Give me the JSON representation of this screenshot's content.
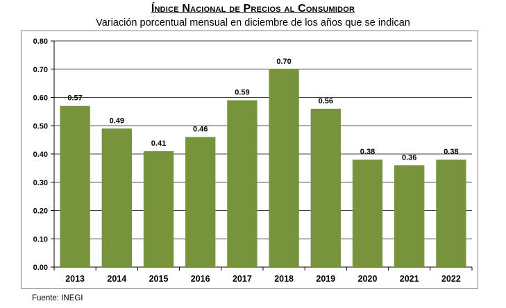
{
  "header": {
    "title": "Índice Nacional de Precios al Consumidor",
    "subtitle": "Variación porcentual mensual en diciembre de los años que se indican"
  },
  "footer": {
    "source": "Fuente: INEGI"
  },
  "colors": {
    "bar": "#77933c",
    "gridline": "#000000",
    "frame": "#7f7f7f"
  },
  "chart_data": {
    "type": "bar",
    "title": "Índice Nacional de Precios al Consumidor",
    "subtitle": "Variación porcentual mensual en diciembre de los años que se indican",
    "categories": [
      "2013",
      "2014",
      "2015",
      "2016",
      "2017",
      "2018",
      "2019",
      "2020",
      "2021",
      "2022"
    ],
    "values": [
      0.57,
      0.49,
      0.41,
      0.46,
      0.59,
      0.7,
      0.56,
      0.38,
      0.36,
      0.38
    ],
    "value_labels": [
      "0.57",
      "0.49",
      "0.41",
      "0.46",
      "0.59",
      "0.70",
      "0.56",
      "0.38",
      "0.36",
      "0.38"
    ],
    "yticks": [
      "0.00",
      "0.10",
      "0.20",
      "0.30",
      "0.40",
      "0.50",
      "0.60",
      "0.70",
      "0.80"
    ],
    "ylim": [
      0,
      0.8
    ],
    "xlabel": "",
    "ylabel": "",
    "grid": true,
    "legend": "none"
  }
}
